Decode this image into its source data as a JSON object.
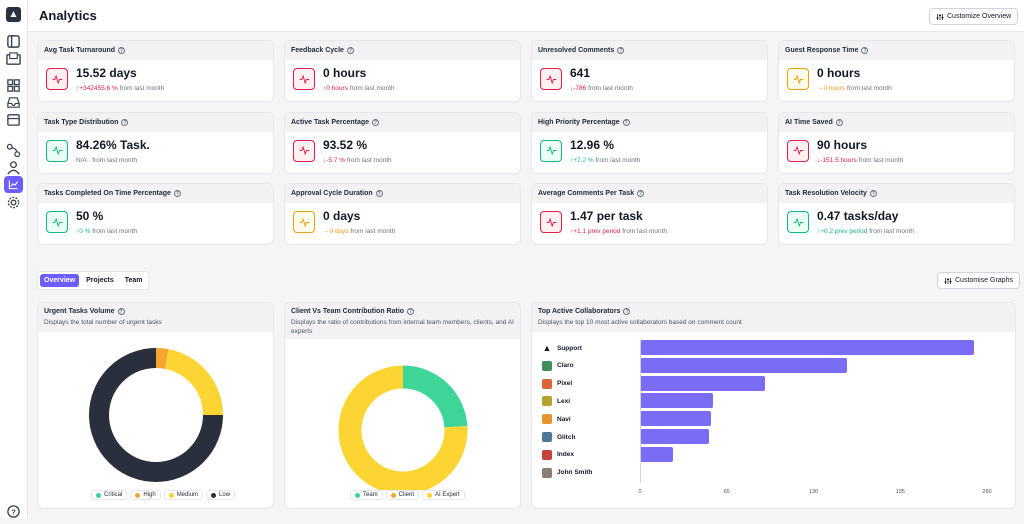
{
  "page": {
    "title": "Analytics",
    "customize_label": "Customize Overview",
    "customise_graphs_label": "Customise Graphs"
  },
  "metrics": [
    {
      "title": "Avg Task Turnaround",
      "value": "15.52 days",
      "change": "+342455.6 %",
      "suffix": " from last month",
      "trend": "up-bad"
    },
    {
      "title": "Feedback Cycle",
      "value": "0 hours",
      "change": "0 hours",
      "suffix": " from last month",
      "trend": "up-bad"
    },
    {
      "title": "Unresolved Comments",
      "value": "641",
      "change": "-786",
      "suffix": " from last month",
      "trend": "down-bad"
    },
    {
      "title": "Guest Response Time",
      "value": "0 hours",
      "change": "0 hours",
      "suffix": " from last month",
      "trend": "neutral"
    },
    {
      "title": "Task Type Distribution",
      "value": "84.26% Task.",
      "change": "N/A",
      "suffix": " · from last month",
      "trend": "good"
    },
    {
      "title": "Active Task Percentage",
      "value": "93.52 %",
      "change": "-5.7 %",
      "suffix": " from last month",
      "trend": "down-bad"
    },
    {
      "title": "High Priority Percentage",
      "value": "12.96 %",
      "change": "+7.2 %",
      "suffix": " from last month",
      "trend": "up-good"
    },
    {
      "title": "AI Time Saved",
      "value": "90 hours",
      "change": "-151.5 hours",
      "suffix": " from last month",
      "trend": "down-bad"
    },
    {
      "title": "Tasks Completed On Time Percentage",
      "value": "50 %",
      "change": "0 %",
      "suffix": " from last month",
      "trend": "up-good"
    },
    {
      "title": "Approval Cycle Duration",
      "value": "0 days",
      "change": "0 days",
      "suffix": " from last month",
      "trend": "neutral"
    },
    {
      "title": "Average Comments Per Task",
      "value": "1.47 per task",
      "change": "+1.1 prev period",
      "suffix": " from last month",
      "trend": "up-bad"
    },
    {
      "title": "Task Resolution Velocity",
      "value": "0.47 tasks/day",
      "change": "+0.2 prev period",
      "suffix": " from last month",
      "trend": "up-good"
    }
  ],
  "tabs": [
    "Overview",
    "Projects",
    "Team"
  ],
  "colors": {
    "accent": "#6d5dfc",
    "bad": "#e11d48",
    "good": "#10b981",
    "neutral": "#f59e0b"
  },
  "panels": {
    "urgent": {
      "title": "Urgent Tasks Volume",
      "subtitle": "Displays the total number of urgent tasks"
    },
    "ratio": {
      "title": "Client Vs Team Contribution Ratio",
      "subtitle": "Displays the ratio of contributions from internal team members, clients, and AI experts"
    },
    "collab": {
      "title": "Top Active Collaborators",
      "subtitle": "Displays the top 10 most active collaborators based on comment count"
    }
  },
  "chart_data": [
    {
      "type": "pie",
      "categories": [
        "Critical",
        "High",
        "Medium",
        "Low"
      ],
      "values": [
        0,
        3,
        22,
        75
      ],
      "colors": [
        "#34d399",
        "#f7a531",
        "#fcd535",
        "#2a2f3d"
      ]
    },
    {
      "type": "pie",
      "categories": [
        "Team",
        "Client",
        "AI Expert"
      ],
      "values": [
        24,
        0,
        76
      ],
      "colors": [
        "#3dd598",
        "#f7a531",
        "#fcd535"
      ]
    },
    {
      "type": "bar",
      "categories": [
        "Support",
        "Claro",
        "Pixel",
        "Lexi",
        "Navi",
        "Glitch",
        "Index",
        "John Smith"
      ],
      "values": [
        250,
        155,
        94,
        55,
        53,
        52,
        25,
        1
      ],
      "xlim": [
        0,
        260
      ],
      "ticks": [
        "0",
        "65",
        "130",
        "195",
        "260"
      ]
    }
  ]
}
